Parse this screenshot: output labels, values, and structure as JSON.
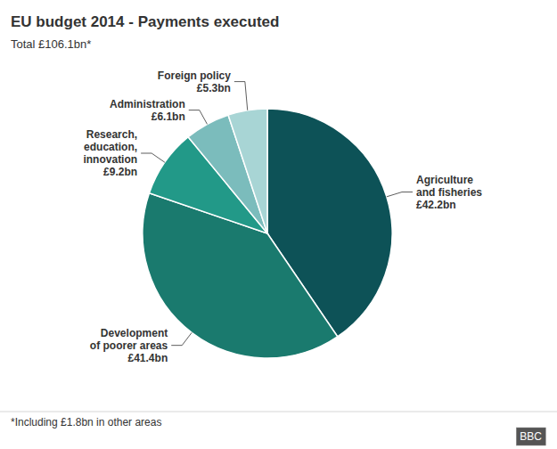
{
  "chart_data": {
    "type": "pie",
    "title": "EU budget 2014 - Payments executed",
    "subtitle": "Total £106.1bn*",
    "categories": [
      "Agriculture\nand fisheries",
      "Development\nof poorer areas",
      "Research,\neducation,\ninnovation",
      "Administration",
      "Foreign policy"
    ],
    "values": [
      42.2,
      41.4,
      9.2,
      6.1,
      5.3
    ],
    "value_labels": [
      "£42.2bn",
      "£41.4bn",
      "£9.2bn",
      "£6.1bn",
      "£5.3bn"
    ],
    "data_labels": true,
    "colors": [
      "#0d5257",
      "#1a7a6e",
      "#229988",
      "#7bbcbc",
      "#a8d5d5"
    ],
    "annotations": [
      "*Including £1.8bn in other areas",
      "BBC"
    ]
  }
}
